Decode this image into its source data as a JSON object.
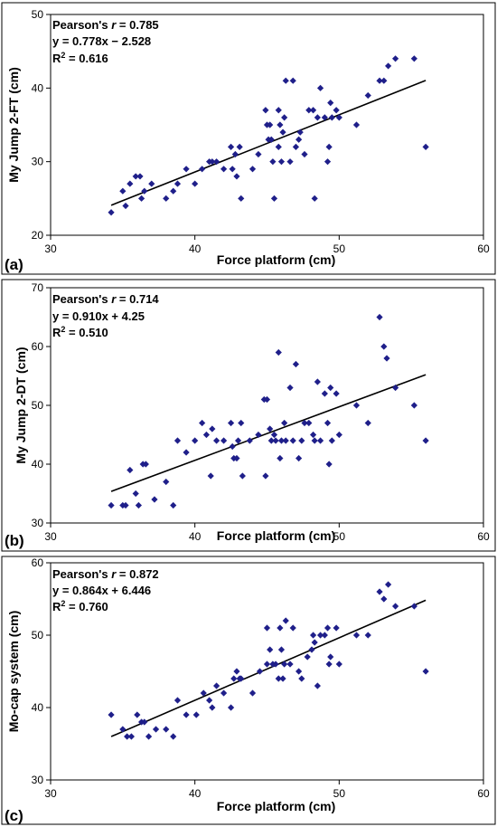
{
  "colors": {
    "marker": "#1f1f8a",
    "line": "#000000",
    "frame": "#000000"
  },
  "chart_data": [
    {
      "type": "scatter",
      "panel_label": "(a)",
      "xlabel": "Force platform (cm)",
      "ylabel": "My Jump 2-FT (cm)",
      "xlim": [
        30,
        60
      ],
      "ylim": [
        20,
        50
      ],
      "xticks": [
        "30",
        "40",
        "50",
        "60"
      ],
      "yticks": [
        "20",
        "30",
        "40",
        "50"
      ],
      "stats": {
        "pearson_prefix": "Pearson's ",
        "pearson_r": "r",
        "pearson_value": " = 0.785",
        "equation": "y = 0.778x − 2.528",
        "r2_base": "R",
        "r2_sup": "2",
        "r2_value": " = 0.616"
      },
      "regression": {
        "slope": 0.778,
        "intercept": -2.528,
        "x_range": [
          34.2,
          56.0
        ]
      },
      "points": [
        [
          34.2,
          23.1
        ],
        [
          35.2,
          24
        ],
        [
          35.0,
          26
        ],
        [
          35.5,
          27
        ],
        [
          35.9,
          28
        ],
        [
          36.2,
          28
        ],
        [
          36.3,
          25
        ],
        [
          36.5,
          26
        ],
        [
          37.0,
          27
        ],
        [
          38.0,
          25
        ],
        [
          38.5,
          26
        ],
        [
          38.8,
          27
        ],
        [
          39.4,
          29
        ],
        [
          40.0,
          27
        ],
        [
          40.5,
          29
        ],
        [
          41.0,
          30
        ],
        [
          41.2,
          30
        ],
        [
          41.5,
          30
        ],
        [
          42.0,
          29
        ],
        [
          42.5,
          32
        ],
        [
          42.6,
          29
        ],
        [
          42.8,
          31
        ],
        [
          42.9,
          28
        ],
        [
          43.1,
          32
        ],
        [
          43.2,
          25
        ],
        [
          44.0,
          29
        ],
        [
          44.4,
          31
        ],
        [
          44.9,
          37
        ],
        [
          45.0,
          35
        ],
        [
          45.1,
          33
        ],
        [
          45.2,
          35
        ],
        [
          45.3,
          33
        ],
        [
          45.4,
          30
        ],
        [
          45.5,
          25
        ],
        [
          45.8,
          32
        ],
        [
          45.8,
          37
        ],
        [
          45.9,
          35
        ],
        [
          46.0,
          30
        ],
        [
          46.1,
          34
        ],
        [
          46.2,
          36
        ],
        [
          46.3,
          41
        ],
        [
          46.6,
          30
        ],
        [
          46.8,
          41
        ],
        [
          47.0,
          32
        ],
        [
          47.2,
          33
        ],
        [
          47.3,
          34
        ],
        [
          47.6,
          31
        ],
        [
          47.9,
          37
        ],
        [
          48.2,
          37
        ],
        [
          48.3,
          25
        ],
        [
          48.5,
          36
        ],
        [
          48.7,
          40
        ],
        [
          49.0,
          36
        ],
        [
          49.2,
          30
        ],
        [
          49.3,
          32
        ],
        [
          49.4,
          38
        ],
        [
          49.5,
          36
        ],
        [
          49.8,
          37
        ],
        [
          50.0,
          36
        ],
        [
          51.2,
          35
        ],
        [
          52.0,
          39
        ],
        [
          52.8,
          41
        ],
        [
          53.1,
          41
        ],
        [
          53.4,
          43
        ],
        [
          53.9,
          44
        ],
        [
          55.2,
          44
        ],
        [
          56.0,
          32
        ]
      ]
    },
    {
      "type": "scatter",
      "panel_label": "(b)",
      "xlabel": "Force platform (cm)",
      "ylabel": "My Jump 2-DT (cm)",
      "xlim": [
        30,
        60
      ],
      "ylim": [
        30,
        70
      ],
      "xticks": [
        "30",
        "40",
        "50",
        "60"
      ],
      "yticks": [
        "30",
        "40",
        "50",
        "60",
        "70"
      ],
      "stats": {
        "pearson_prefix": "Pearson's ",
        "pearson_r": "r",
        "pearson_value": " = 0.714",
        "equation": "y = 0.910x + 4.25",
        "r2_base": "R",
        "r2_sup": "2",
        "r2_value": " = 0.510"
      },
      "regression": {
        "slope": 0.91,
        "intercept": 4.25,
        "x_range": [
          34.2,
          56.0
        ]
      },
      "points": [
        [
          34.2,
          33
        ],
        [
          35.0,
          33
        ],
        [
          35.2,
          33
        ],
        [
          35.5,
          39
        ],
        [
          35.9,
          35
        ],
        [
          36.1,
          33
        ],
        [
          36.4,
          40
        ],
        [
          36.6,
          40
        ],
        [
          37.2,
          34
        ],
        [
          38.0,
          37
        ],
        [
          38.5,
          33
        ],
        [
          38.8,
          44
        ],
        [
          39.4,
          42
        ],
        [
          40.0,
          44
        ],
        [
          40.5,
          47
        ],
        [
          40.8,
          45
        ],
        [
          41.2,
          46
        ],
        [
          41.1,
          38
        ],
        [
          41.5,
          44
        ],
        [
          42.0,
          44
        ],
        [
          42.5,
          47
        ],
        [
          42.6,
          43
        ],
        [
          42.7,
          41
        ],
        [
          42.9,
          41
        ],
        [
          43.0,
          44
        ],
        [
          43.2,
          47
        ],
        [
          43.3,
          38
        ],
        [
          43.8,
          44
        ],
        [
          44.4,
          45
        ],
        [
          44.8,
          51
        ],
        [
          44.9,
          38
        ],
        [
          45.0,
          51
        ],
        [
          45.2,
          46
        ],
        [
          45.3,
          44
        ],
        [
          45.5,
          45
        ],
        [
          45.6,
          44
        ],
        [
          45.8,
          59
        ],
        [
          45.9,
          41
        ],
        [
          46.0,
          44
        ],
        [
          46.2,
          47
        ],
        [
          46.3,
          44
        ],
        [
          46.6,
          53
        ],
        [
          46.8,
          44
        ],
        [
          47.0,
          57
        ],
        [
          47.2,
          41
        ],
        [
          47.4,
          44
        ],
        [
          47.6,
          47
        ],
        [
          47.9,
          47
        ],
        [
          48.2,
          45
        ],
        [
          48.3,
          44
        ],
        [
          48.5,
          54
        ],
        [
          48.7,
          44
        ],
        [
          49.0,
          52
        ],
        [
          49.2,
          47
        ],
        [
          49.3,
          40
        ],
        [
          49.4,
          53
        ],
        [
          49.5,
          44
        ],
        [
          49.8,
          52
        ],
        [
          50.0,
          45
        ],
        [
          51.2,
          50
        ],
        [
          52.0,
          47
        ],
        [
          52.8,
          65
        ],
        [
          53.1,
          60
        ],
        [
          53.3,
          58
        ],
        [
          53.9,
          53
        ],
        [
          55.2,
          50
        ],
        [
          56.0,
          44
        ]
      ]
    },
    {
      "type": "scatter",
      "panel_label": "(c)",
      "xlabel": "Force platform (cm)",
      "ylabel": "Mo-cap system (cm)",
      "xlim": [
        30,
        60
      ],
      "ylim": [
        30,
        60
      ],
      "xticks": [
        "30",
        "40",
        "50",
        "60"
      ],
      "yticks": [
        "30",
        "40",
        "50",
        "60"
      ],
      "stats": {
        "pearson_prefix": "Pearson's ",
        "pearson_r": "r",
        "pearson_value": " = 0.872",
        "equation": "y = 0.864x + 6.446",
        "r2_base": "R",
        "r2_sup": "2",
        "r2_value": " = 0.760"
      },
      "regression": {
        "slope": 0.864,
        "intercept": 6.446,
        "x_range": [
          34.2,
          56.0
        ]
      },
      "points": [
        [
          34.2,
          39
        ],
        [
          35.0,
          37
        ],
        [
          35.3,
          36
        ],
        [
          35.6,
          36
        ],
        [
          36.0,
          39
        ],
        [
          36.3,
          38
        ],
        [
          36.5,
          38
        ],
        [
          36.8,
          36
        ],
        [
          37.3,
          37
        ],
        [
          38.0,
          37
        ],
        [
          38.5,
          36
        ],
        [
          38.8,
          41
        ],
        [
          39.4,
          39
        ],
        [
          40.1,
          39
        ],
        [
          40.6,
          42
        ],
        [
          41.0,
          41
        ],
        [
          41.2,
          40
        ],
        [
          41.5,
          43
        ],
        [
          42.0,
          42
        ],
        [
          42.5,
          40
        ],
        [
          42.7,
          44
        ],
        [
          42.9,
          45
        ],
        [
          43.1,
          44
        ],
        [
          43.2,
          44
        ],
        [
          44.0,
          42
        ],
        [
          44.5,
          45
        ],
        [
          45.0,
          46
        ],
        [
          45.0,
          51
        ],
        [
          45.2,
          48
        ],
        [
          45.4,
          46
        ],
        [
          45.6,
          46
        ],
        [
          45.8,
          44
        ],
        [
          45.9,
          51
        ],
        [
          46.0,
          48
        ],
        [
          46.1,
          44
        ],
        [
          46.2,
          46
        ],
        [
          46.3,
          52
        ],
        [
          46.6,
          46
        ],
        [
          46.8,
          51
        ],
        [
          47.2,
          45
        ],
        [
          47.4,
          44
        ],
        [
          47.8,
          47
        ],
        [
          48.1,
          48
        ],
        [
          48.2,
          50
        ],
        [
          48.3,
          49
        ],
        [
          48.5,
          43
        ],
        [
          48.7,
          50
        ],
        [
          49.0,
          50
        ],
        [
          49.2,
          51
        ],
        [
          49.3,
          46
        ],
        [
          49.4,
          47
        ],
        [
          49.8,
          51
        ],
        [
          50.0,
          46
        ],
        [
          51.2,
          50
        ],
        [
          52.0,
          50
        ],
        [
          52.8,
          56
        ],
        [
          53.1,
          55
        ],
        [
          53.4,
          57
        ],
        [
          53.9,
          54
        ],
        [
          55.2,
          54
        ],
        [
          56.0,
          45
        ]
      ]
    }
  ]
}
